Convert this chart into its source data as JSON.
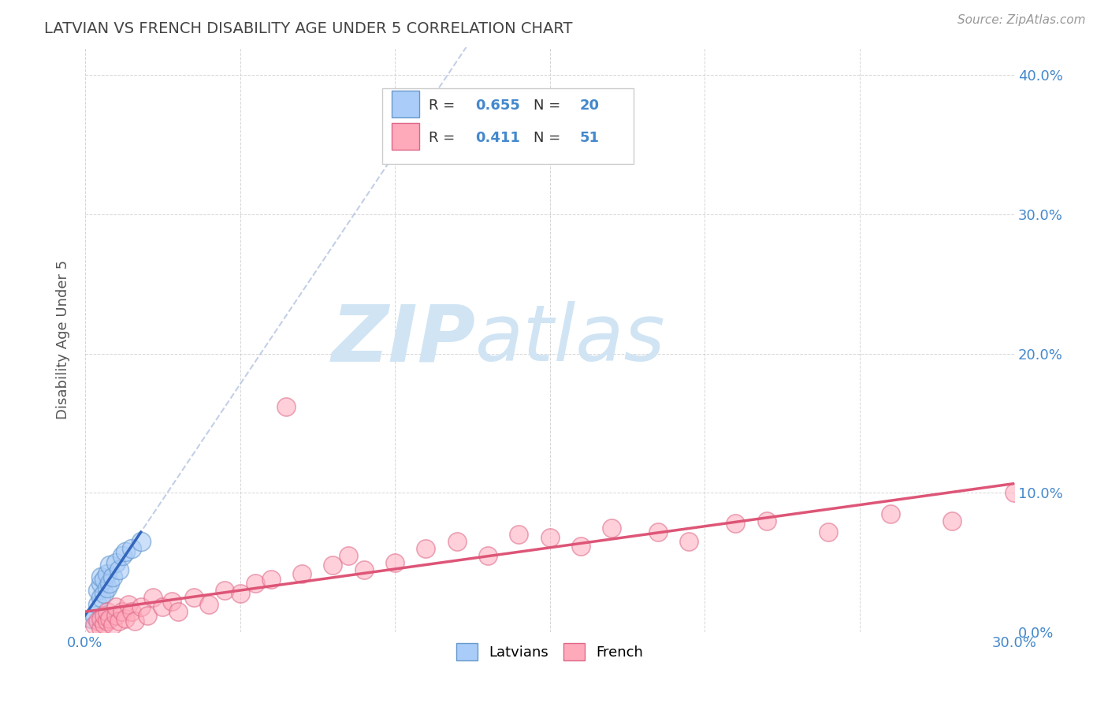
{
  "title": "LATVIAN VS FRENCH DISABILITY AGE UNDER 5 CORRELATION CHART",
  "source": "Source: ZipAtlas.com",
  "ylabel": "Disability Age Under 5",
  "xmin": 0.0,
  "xmax": 0.3,
  "ymin": 0.0,
  "ymax": 0.42,
  "xticks": [
    0.0,
    0.05,
    0.1,
    0.15,
    0.2,
    0.25,
    0.3
  ],
  "yticks": [
    0.0,
    0.1,
    0.2,
    0.3,
    0.4
  ],
  "ytick_labels": [
    "0.0%",
    "10.0%",
    "20.0%",
    "30.0%",
    "40.0%"
  ],
  "latvian_R": 0.655,
  "latvian_N": 20,
  "french_R": 0.411,
  "french_N": 51,
  "latvian_color": "#aaccf8",
  "latvian_edge_color": "#6699cc",
  "french_color": "#ffaabb",
  "french_edge_color": "#dd6688",
  "latvian_line_color": "#3366bb",
  "french_line_color": "#dd5577",
  "background_color": "#ffffff",
  "grid_color": "#cccccc",
  "title_color": "#444444",
  "watermark_color": "#d0e4f4",
  "axis_label_color": "#4488cc",
  "latvian_x": [
    0.002,
    0.003,
    0.004,
    0.004,
    0.005,
    0.005,
    0.005,
    0.006,
    0.006,
    0.007,
    0.007,
    0.008,
    0.008,
    0.009,
    0.01,
    0.011,
    0.012,
    0.013,
    0.015,
    0.018
  ],
  "latvian_y": [
    0.01,
    0.012,
    0.02,
    0.03,
    0.025,
    0.035,
    0.04,
    0.028,
    0.038,
    0.032,
    0.042,
    0.035,
    0.048,
    0.04,
    0.05,
    0.045,
    0.055,
    0.058,
    0.06,
    0.065
  ],
  "french_x": [
    0.003,
    0.004,
    0.005,
    0.005,
    0.006,
    0.006,
    0.007,
    0.007,
    0.008,
    0.009,
    0.01,
    0.01,
    0.011,
    0.012,
    0.013,
    0.014,
    0.015,
    0.016,
    0.018,
    0.02,
    0.022,
    0.025,
    0.028,
    0.03,
    0.035,
    0.04,
    0.045,
    0.05,
    0.055,
    0.06,
    0.065,
    0.07,
    0.08,
    0.085,
    0.09,
    0.1,
    0.11,
    0.12,
    0.13,
    0.14,
    0.15,
    0.16,
    0.17,
    0.185,
    0.195,
    0.21,
    0.22,
    0.24,
    0.26,
    0.28,
    0.3
  ],
  "french_y": [
    0.005,
    0.008,
    0.003,
    0.01,
    0.006,
    0.012,
    0.008,
    0.015,
    0.01,
    0.005,
    0.012,
    0.018,
    0.008,
    0.015,
    0.01,
    0.02,
    0.015,
    0.008,
    0.018,
    0.012,
    0.025,
    0.018,
    0.022,
    0.015,
    0.025,
    0.02,
    0.03,
    0.028,
    0.035,
    0.038,
    0.162,
    0.042,
    0.048,
    0.055,
    0.045,
    0.05,
    0.06,
    0.065,
    0.055,
    0.07,
    0.068,
    0.062,
    0.075,
    0.072,
    0.065,
    0.078,
    0.08,
    0.072,
    0.085,
    0.08,
    0.1
  ]
}
